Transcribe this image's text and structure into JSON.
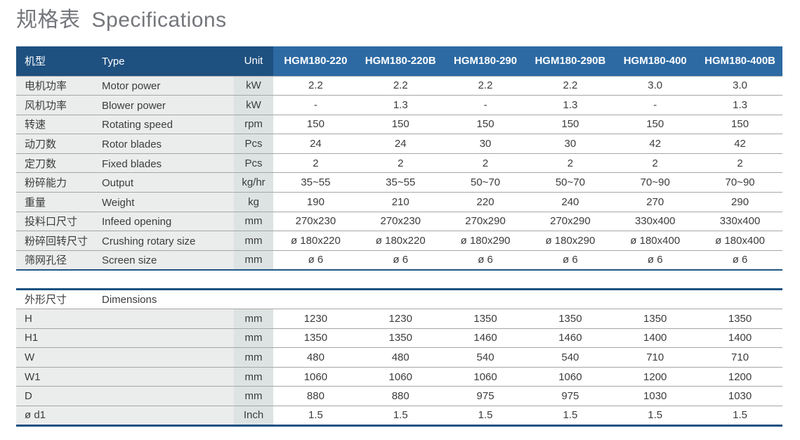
{
  "title": {
    "cn": "规格表",
    "en": "Specifications"
  },
  "colors": {
    "header_dark_blue": "#1E5080",
    "header_light_blue": "#2D6AA3",
    "table_border_blue": "#1F5787",
    "label_column_bg": "#EBECEC",
    "unit_column_bg": "#DDE3E3",
    "row_divider_gray": "#A6A6A6",
    "title_gray": "#74767B",
    "body_text": "#3C3C3C"
  },
  "table1": {
    "header": {
      "cn": "机型",
      "en": "Type",
      "unit": "Unit",
      "models": [
        "HGM180-220",
        "HGM180-220B",
        "HGM180-290",
        "HGM180-290B",
        "HGM180-400",
        "HGM180-400B"
      ]
    },
    "rows": [
      {
        "cn": "电机功率",
        "en": "Motor power",
        "unit": "kW",
        "values": [
          "2.2",
          "2.2",
          "2.2",
          "2.2",
          "3.0",
          "3.0"
        ]
      },
      {
        "cn": "风机功率",
        "en": "Blower power",
        "unit": "kW",
        "values": [
          "-",
          "1.3",
          "-",
          "1.3",
          "-",
          "1.3"
        ]
      },
      {
        "cn": "转速",
        "en": "Rotating speed",
        "unit": "rpm",
        "values": [
          "150",
          "150",
          "150",
          "150",
          "150",
          "150"
        ]
      },
      {
        "cn": "动刀数",
        "en": "Rotor blades",
        "unit": "Pcs",
        "values": [
          "24",
          "24",
          "30",
          "30",
          "42",
          "42"
        ]
      },
      {
        "cn": "定刀数",
        "en": "Fixed blades",
        "unit": "Pcs",
        "values": [
          "2",
          "2",
          "2",
          "2",
          "2",
          "2"
        ]
      },
      {
        "cn": "粉碎能力",
        "en": "Output",
        "unit": "kg/hr",
        "values": [
          "35~55",
          "35~55",
          "50~70",
          "50~70",
          "70~90",
          "70~90"
        ]
      },
      {
        "cn": "重量",
        "en": "Weight",
        "unit": "kg",
        "values": [
          "190",
          "210",
          "220",
          "240",
          "270",
          "290"
        ]
      },
      {
        "cn": "投料口尺寸",
        "en": "Infeed opening",
        "unit": "mm",
        "values": [
          "270x230",
          "270x230",
          "270x290",
          "270x290",
          "330x400",
          "330x400"
        ]
      },
      {
        "cn": "粉碎回转尺寸",
        "en": "Crushing rotary size",
        "unit": "mm",
        "values": [
          "ø 180x220",
          "ø 180x220",
          "ø 180x290",
          "ø 180x290",
          "ø 180x400",
          "ø 180x400"
        ]
      },
      {
        "cn": "筛网孔径",
        "en": "Screen size",
        "unit": "mm",
        "values": [
          "ø 6",
          "ø 6",
          "ø 6",
          "ø 6",
          "ø 6",
          "ø 6"
        ]
      }
    ]
  },
  "table2": {
    "section": {
      "cn": "外形尺寸",
      "en": "Dimensions"
    },
    "rows": [
      {
        "label": "H",
        "unit": "mm",
        "values": [
          "1230",
          "1230",
          "1350",
          "1350",
          "1350",
          "1350"
        ]
      },
      {
        "label": "H1",
        "unit": "mm",
        "values": [
          "1350",
          "1350",
          "1460",
          "1460",
          "1400",
          "1400"
        ]
      },
      {
        "label": "W",
        "unit": "mm",
        "values": [
          "480",
          "480",
          "540",
          "540",
          "710",
          "710"
        ]
      },
      {
        "label": "W1",
        "unit": "mm",
        "values": [
          "1060",
          "1060",
          "1060",
          "1060",
          "1200",
          "1200"
        ]
      },
      {
        "label": "D",
        "unit": "mm",
        "values": [
          "880",
          "880",
          "975",
          "975",
          "1030",
          "1030"
        ]
      },
      {
        "label": "ø d1",
        "unit": "Inch",
        "values": [
          "1.5",
          "1.5",
          "1.5",
          "1.5",
          "1.5",
          "1.5"
        ]
      }
    ]
  }
}
